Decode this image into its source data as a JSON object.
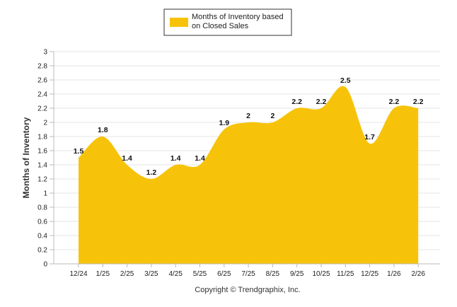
{
  "chart_data": {
    "type": "area",
    "categories": [
      "12/24",
      "1/25",
      "2/25",
      "3/25",
      "4/25",
      "5/25",
      "6/25",
      "7/25",
      "8/25",
      "9/25",
      "10/25",
      "11/25",
      "12/25",
      "1/26",
      "2/26"
    ],
    "series": [
      {
        "name": "Months of Inventory based on Closed Sales",
        "values": [
          1.5,
          1.8,
          1.4,
          1.2,
          1.4,
          1.4,
          1.9,
          2,
          2,
          2.2,
          2.2,
          2.5,
          1.7,
          2.2,
          2.2
        ],
        "color": "#F7C30A"
      }
    ],
    "data_labels": [
      "1.5",
      "1.8",
      "1.4",
      "1.2",
      "1.4",
      "1.4",
      "1.9",
      "2",
      "2",
      "2.2",
      "2.2",
      "2.5",
      "1.7",
      "2.2",
      "2.2"
    ],
    "ylabel": "Months of Inventory",
    "xlabel": "",
    "ylim": [
      0,
      3
    ],
    "yticks": [
      0,
      0.2,
      0.4,
      0.6,
      0.8,
      1,
      1.2,
      1.4,
      1.6,
      1.8,
      2,
      2.2,
      2.4,
      2.6,
      2.8,
      3
    ],
    "ytick_labels": [
      "0",
      "0.2",
      "0.4",
      "0.6",
      "0.8",
      "1",
      "1.2",
      "1.4",
      "1.6",
      "1.8",
      "2",
      "2.2",
      "2.4",
      "2.6",
      "2.8",
      "3"
    ],
    "legend": {
      "line1": "Months of Inventory based",
      "line2": "on Closed Sales",
      "placement": "top-center"
    },
    "grid": true,
    "gridline_color": "#e6e6e6",
    "axis_color": "#bbbbbb"
  },
  "footer": {
    "credit": "Copyright © Trendgraphix, Inc."
  }
}
